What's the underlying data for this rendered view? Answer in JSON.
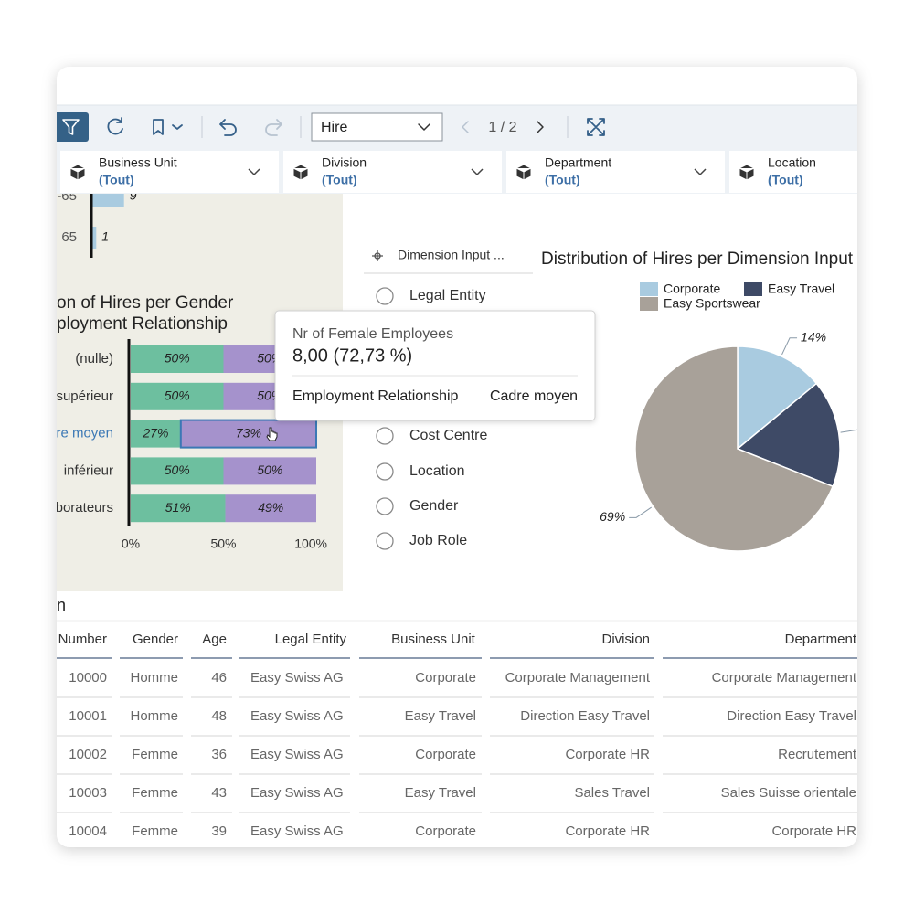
{
  "toolbar": {
    "variant": "Hire",
    "page": "1 / 2"
  },
  "filters": [
    {
      "label": "Business Unit",
      "value": "(Tout)"
    },
    {
      "label": "Division",
      "value": "(Tout)"
    },
    {
      "label": "Department",
      "value": "(Tout)"
    },
    {
      "label": "Location",
      "value": "(Tout)"
    }
  ],
  "age_chart": {
    "type": "bar",
    "categories": [
      "-65",
      "65"
    ],
    "values": [
      9,
      1
    ],
    "color": "#a9cbe0"
  },
  "gender_chart": {
    "type": "bar",
    "stacked": true,
    "title_lines": [
      "on of Hires per Gender",
      "ployment Relationship"
    ],
    "categories": [
      "(nulle)",
      "supérieur",
      "re moyen",
      "inférieur",
      "borateurs"
    ],
    "selected_index": 2,
    "series": [
      {
        "values": [
          50,
          50,
          27,
          50,
          51
        ],
        "value_labels": [
          "50%",
          "50%",
          "27%",
          "50%",
          "51%"
        ],
        "color": "#6dbf9f"
      },
      {
        "values": [
          50,
          50,
          73,
          50,
          49
        ],
        "value_labels": [
          "50%",
          "50%",
          "73%",
          "50%",
          "49%"
        ],
        "color": "#a592cc"
      }
    ],
    "xlim": [
      0,
      100
    ],
    "xticks": [
      {
        "value": 0,
        "label": "0%"
      },
      {
        "value": 50,
        "label": "50%"
      },
      {
        "value": 100,
        "label": "100%"
      }
    ]
  },
  "dimension_list": {
    "header": "Dimension Input ...",
    "options": [
      "Legal Entity",
      "Cost Centre",
      "Location",
      "Gender",
      "Job Role"
    ]
  },
  "tooltip": {
    "measure": "Nr of Female Employees",
    "value": "8,00 (72,73 %)",
    "dimension": "Employment Relationship",
    "member": "Cadre moyen"
  },
  "pie_chart": {
    "type": "pie",
    "title": "Distribution of Hires per Dimension Input",
    "categories": [
      "Corporate",
      "Easy Travel",
      "Easy Sportswear"
    ],
    "values": [
      14,
      17,
      69
    ],
    "value_labels": [
      "14%",
      null,
      "69%"
    ],
    "colors": [
      "#a9cbe0",
      "#3e4a66",
      "#a8a199"
    ]
  },
  "table": {
    "title": "n",
    "columns": [
      "Number",
      "Gender",
      "Age",
      "Legal Entity",
      "Business Unit",
      "Division",
      "Department"
    ],
    "rows": [
      [
        10000,
        "Homme",
        46,
        "Easy Swiss AG",
        "Corporate",
        "Corporate Management",
        "Corporate Management"
      ],
      [
        10001,
        "Homme",
        48,
        "Easy Swiss AG",
        "Easy Travel",
        "Direction Easy Travel",
        "Direction Easy Travel"
      ],
      [
        10002,
        "Femme",
        36,
        "Easy Swiss AG",
        "Corporate",
        "Corporate HR",
        "Recrutement"
      ],
      [
        10003,
        "Femme",
        43,
        "Easy Swiss AG",
        "Easy Travel",
        "Sales Travel",
        "Sales Suisse orientale"
      ],
      [
        10004,
        "Femme",
        39,
        "Easy Swiss AG",
        "Corporate",
        "Corporate HR",
        "Corporate HR"
      ]
    ]
  }
}
